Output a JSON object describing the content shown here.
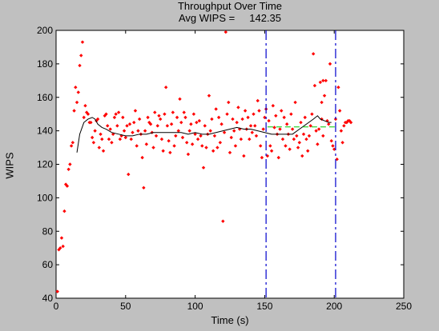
{
  "title_line1": "Throughput Over Time",
  "title_line2": "Avg WIPS =     142.35",
  "chart_data": {
    "type": "scatter",
    "title": "Throughput Over Time",
    "subtitle": "Avg WIPS =     142.35",
    "xlabel": "Time (s)",
    "ylabel": "WIPS",
    "xlim": [
      0,
      250
    ],
    "ylim": [
      40,
      200
    ],
    "xticks": [
      0,
      50,
      100,
      150,
      200,
      250
    ],
    "yticks": [
      40,
      60,
      80,
      100,
      120,
      140,
      160,
      180,
      200
    ],
    "grid": false,
    "colors": {
      "points": "#ff0000",
      "running_avg": "#000000",
      "avg_segment": "#00cc00",
      "markers": "#0000cc",
      "plot_bg": "#ffffff",
      "figure_bg": "#c0c0c0"
    },
    "vertical_markers": [
      151,
      201
    ],
    "avg_segment": {
      "x": [
        152,
        201
      ],
      "y": 142.35
    },
    "running_avg": {
      "x": [
        15,
        17,
        20,
        23,
        26,
        28,
        30,
        33,
        36,
        40,
        45,
        50,
        55,
        60,
        65,
        70,
        75,
        80,
        85,
        90,
        95,
        100,
        105,
        110,
        115,
        120,
        125,
        130,
        135,
        140,
        145,
        150,
        155,
        160,
        165,
        170,
        175,
        180,
        185,
        188,
        190,
        193,
        196,
        198
      ],
      "y": [
        127,
        138,
        145,
        147,
        148,
        147,
        144,
        142,
        141,
        139,
        138,
        137,
        137,
        138,
        138,
        139,
        139,
        139,
        139,
        139,
        138,
        139,
        138,
        138,
        139,
        140,
        141,
        142,
        141,
        141,
        140,
        139,
        138,
        138,
        138,
        138,
        141,
        144,
        147,
        149,
        147,
        146,
        145,
        145
      ]
    },
    "points": [
      [
        1,
        44
      ],
      [
        2,
        69
      ],
      [
        3,
        70
      ],
      [
        4,
        76
      ],
      [
        5,
        71
      ],
      [
        6,
        92
      ],
      [
        7,
        108
      ],
      [
        8,
        107
      ],
      [
        9,
        117
      ],
      [
        10,
        120
      ],
      [
        11,
        131
      ],
      [
        12,
        133
      ],
      [
        13,
        152
      ],
      [
        14,
        166
      ],
      [
        15,
        157
      ],
      [
        16,
        163
      ],
      [
        17,
        179
      ],
      [
        18,
        185
      ],
      [
        19,
        193
      ],
      [
        20,
        148
      ],
      [
        21,
        155
      ],
      [
        22,
        151
      ],
      [
        23,
        150
      ],
      [
        24,
        145
      ],
      [
        25,
        145
      ],
      [
        26,
        136
      ],
      [
        27,
        133
      ],
      [
        28,
        140
      ],
      [
        29,
        146
      ],
      [
        30,
        147
      ],
      [
        31,
        130
      ],
      [
        32,
        138
      ],
      [
        33,
        135
      ],
      [
        34,
        128
      ],
      [
        35,
        149
      ],
      [
        36,
        150
      ],
      [
        37,
        143
      ],
      [
        38,
        135
      ],
      [
        39,
        141
      ],
      [
        40,
        133
      ],
      [
        41,
        138
      ],
      [
        42,
        148
      ],
      [
        43,
        150
      ],
      [
        44,
        143
      ],
      [
        45,
        151
      ],
      [
        46,
        135
      ],
      [
        47,
        137
      ],
      [
        48,
        148
      ],
      [
        49,
        140
      ],
      [
        50,
        136
      ],
      [
        51,
        143
      ],
      [
        52,
        114
      ],
      [
        53,
        144
      ],
      [
        54,
        135
      ],
      [
        55,
        139
      ],
      [
        56,
        145
      ],
      [
        57,
        152
      ],
      [
        58,
        131
      ],
      [
        59,
        140
      ],
      [
        60,
        147
      ],
      [
        61,
        138
      ],
      [
        62,
        124
      ],
      [
        63,
        106
      ],
      [
        64,
        140
      ],
      [
        65,
        132
      ],
      [
        66,
        148
      ],
      [
        67,
        145
      ],
      [
        68,
        144
      ],
      [
        69,
        139
      ],
      [
        70,
        130
      ],
      [
        71,
        151
      ],
      [
        72,
        137
      ],
      [
        73,
        143
      ],
      [
        74,
        149
      ],
      [
        75,
        147
      ],
      [
        76,
        135
      ],
      [
        77,
        128
      ],
      [
        78,
        150
      ],
      [
        79,
        166
      ],
      [
        80,
        143
      ],
      [
        81,
        134
      ],
      [
        82,
        127
      ],
      [
        83,
        144
      ],
      [
        84,
        151
      ],
      [
        85,
        131
      ],
      [
        86,
        137
      ],
      [
        87,
        148
      ],
      [
        88,
        140
      ],
      [
        89,
        159
      ],
      [
        90,
        145
      ],
      [
        91,
        136
      ],
      [
        92,
        151
      ],
      [
        93,
        148
      ],
      [
        94,
        133
      ],
      [
        95,
        126
      ],
      [
        96,
        140
      ],
      [
        97,
        144
      ],
      [
        98,
        132
      ],
      [
        99,
        150
      ],
      [
        100,
        138
      ],
      [
        101,
        145
      ],
      [
        102,
        135
      ],
      [
        103,
        146
      ],
      [
        104,
        137
      ],
      [
        105,
        131
      ],
      [
        106,
        118
      ],
      [
        107,
        143
      ],
      [
        108,
        130
      ],
      [
        109,
        138
      ],
      [
        110,
        161
      ],
      [
        111,
        140
      ],
      [
        112,
        147
      ],
      [
        113,
        128
      ],
      [
        114,
        137
      ],
      [
        115,
        153
      ],
      [
        116,
        130
      ],
      [
        117,
        148
      ],
      [
        118,
        133
      ],
      [
        119,
        144
      ],
      [
        120,
        86
      ],
      [
        121,
        139
      ],
      [
        122,
        199
      ],
      [
        123,
        150
      ],
      [
        124,
        157
      ],
      [
        125,
        127
      ],
      [
        126,
        136
      ],
      [
        127,
        147
      ],
      [
        128,
        140
      ],
      [
        129,
        131
      ],
      [
        130,
        145
      ],
      [
        131,
        154
      ],
      [
        132,
        141
      ],
      [
        133,
        135
      ],
      [
        134,
        147
      ],
      [
        135,
        125
      ],
      [
        136,
        152
      ],
      [
        137,
        141
      ],
      [
        138,
        148
      ],
      [
        139,
        135
      ],
      [
        140,
        143
      ],
      [
        141,
        139
      ],
      [
        142,
        150
      ],
      [
        143,
        143
      ],
      [
        144,
        137
      ],
      [
        145,
        158
      ],
      [
        146,
        152
      ],
      [
        147,
        131
      ],
      [
        148,
        124
      ],
      [
        149,
        141
      ],
      [
        150,
        148
      ],
      [
        151,
        153
      ],
      [
        152,
        125
      ],
      [
        153,
        146
      ],
      [
        154,
        131
      ],
      [
        155,
        128
      ],
      [
        156,
        155
      ],
      [
        157,
        142
      ],
      [
        158,
        149
      ],
      [
        159,
        138
      ],
      [
        160,
        124
      ],
      [
        161,
        141
      ],
      [
        162,
        152
      ],
      [
        163,
        135
      ],
      [
        164,
        148
      ],
      [
        165,
        131
      ],
      [
        166,
        144
      ],
      [
        167,
        138
      ],
      [
        168,
        129
      ],
      [
        169,
        150
      ],
      [
        170,
        141
      ],
      [
        171,
        135
      ],
      [
        172,
        157
      ],
      [
        173,
        137
      ],
      [
        174,
        130
      ],
      [
        175,
        133
      ],
      [
        176,
        145
      ],
      [
        177,
        125
      ],
      [
        178,
        138
      ],
      [
        179,
        148
      ],
      [
        180,
        135
      ],
      [
        181,
        128
      ],
      [
        182,
        137
      ],
      [
        183,
        143
      ],
      [
        184,
        150
      ],
      [
        185,
        186
      ],
      [
        186,
        167
      ],
      [
        187,
        140
      ],
      [
        188,
        132
      ],
      [
        189,
        141
      ],
      [
        190,
        169
      ],
      [
        191,
        147
      ],
      [
        192,
        137
      ],
      [
        193,
        161
      ],
      [
        194,
        170
      ],
      [
        195,
        146
      ],
      [
        196,
        144
      ],
      [
        197,
        180
      ],
      [
        198,
        134
      ],
      [
        199,
        131
      ],
      [
        200,
        129
      ],
      [
        201,
        147
      ],
      [
        202,
        123
      ],
      [
        203,
        166
      ],
      [
        204,
        152
      ],
      [
        205,
        140
      ],
      [
        206,
        133
      ],
      [
        207,
        143
      ],
      [
        208,
        145
      ],
      [
        209,
        145
      ],
      [
        210,
        146
      ],
      [
        211,
        146
      ],
      [
        212,
        145
      ],
      [
        192,
        170
      ],
      [
        191,
        157
      ]
    ]
  }
}
